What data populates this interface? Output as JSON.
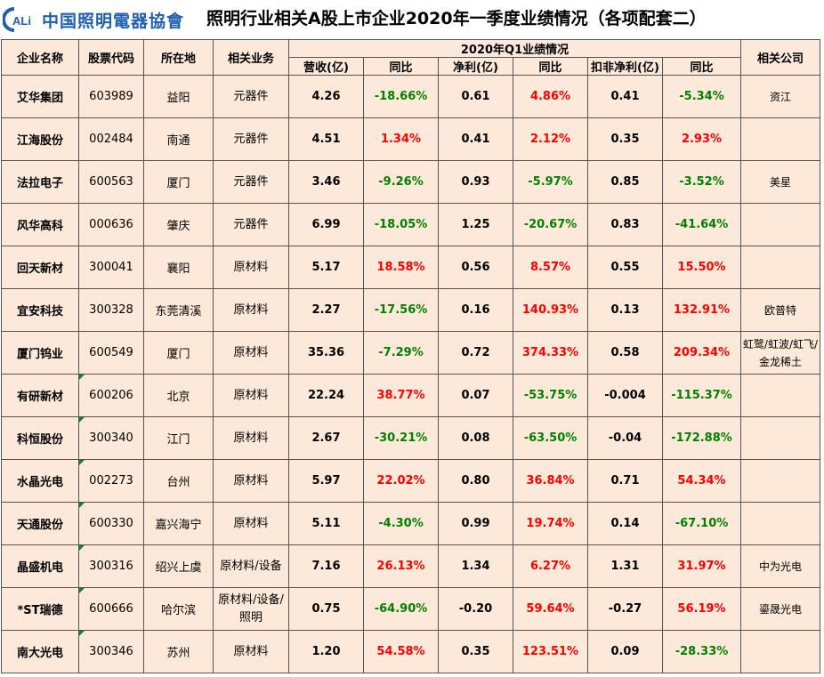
{
  "header": {
    "logo_text": "中国照明電器協會",
    "title": "照明行业相关A股上市企业2020年一季度业绩情况（各项配套二）"
  },
  "colors": {
    "positive": "#ff0000",
    "negative": "#008000",
    "cell_bg": "#fde9d9",
    "logo": "#1f5fb0"
  },
  "table": {
    "headers": {
      "company": "企业名称",
      "code": "股票代码",
      "location": "所在地",
      "business": "相关业务",
      "group": "2020年Q1业绩情况",
      "revenue": "营收(亿)",
      "rev_yoy": "同比",
      "net": "净利(亿)",
      "net_yoy": "同比",
      "deducted": "扣非净利(亿)",
      "ded_yoy": "同比",
      "related": "相关公司"
    },
    "rows": [
      {
        "name": "艾华集团",
        "code": "603989",
        "city": "益阳",
        "business": "元器件",
        "revenue": "4.26",
        "rev_yoy": "-18.66%",
        "net": "0.61",
        "net_yoy": "4.86%",
        "deducted": "0.41",
        "ded_yoy": "-5.34%",
        "related": "资江"
      },
      {
        "name": "江海股份",
        "code": "002484",
        "city": "南通",
        "business": "元器件",
        "revenue": "4.51",
        "rev_yoy": "1.34%",
        "net": "0.41",
        "net_yoy": "2.12%",
        "deducted": "0.35",
        "ded_yoy": "2.93%",
        "related": ""
      },
      {
        "name": "法拉电子",
        "code": "600563",
        "city": "厦门",
        "business": "元器件",
        "revenue": "3.46",
        "rev_yoy": "-9.26%",
        "net": "0.93",
        "net_yoy": "-5.97%",
        "deducted": "0.85",
        "ded_yoy": "-3.52%",
        "related": "美星"
      },
      {
        "name": "风华高科",
        "code": "000636",
        "city": "肇庆",
        "business": "元器件",
        "revenue": "6.99",
        "rev_yoy": "-18.05%",
        "net": "1.25",
        "net_yoy": "-20.67%",
        "deducted": "0.83",
        "ded_yoy": "-41.64%",
        "related": ""
      },
      {
        "name": "回天新材",
        "code": "300041",
        "city": "襄阳",
        "business": "原材料",
        "revenue": "5.17",
        "rev_yoy": "18.58%",
        "net": "0.56",
        "net_yoy": "8.57%",
        "deducted": "0.55",
        "ded_yoy": "15.50%",
        "related": ""
      },
      {
        "name": "宜安科技",
        "code": "300328",
        "city": "东莞清溪",
        "business": "原材料",
        "revenue": "2.27",
        "rev_yoy": "-17.56%",
        "net": "0.16",
        "net_yoy": "140.93%",
        "deducted": "0.13",
        "ded_yoy": "132.91%",
        "related": "欧普特"
      },
      {
        "name": "厦门钨业",
        "code": "600549",
        "city": "厦门",
        "business": "原材料",
        "revenue": "35.36",
        "rev_yoy": "-7.29%",
        "net": "0.72",
        "net_yoy": "374.33%",
        "deducted": "0.58",
        "ded_yoy": "209.34%",
        "related": "虹鹭/虹波/虹飞/金龙稀土"
      },
      {
        "name": "有研新材",
        "code": "600206",
        "city": "北京",
        "business": "原材料",
        "revenue": "22.24",
        "rev_yoy": "38.77%",
        "net": "0.07",
        "net_yoy": "-53.75%",
        "deducted": "-0.004",
        "ded_yoy": "-115.37%",
        "related": ""
      },
      {
        "name": "科恒股份",
        "code": "300340",
        "city": "江门",
        "business": "原材料",
        "revenue": "2.67",
        "rev_yoy": "-30.21%",
        "net": "0.08",
        "net_yoy": "-63.50%",
        "deducted": "-0.04",
        "ded_yoy": "-172.88%",
        "related": ""
      },
      {
        "name": "水晶光电",
        "code": "002273",
        "city": "台州",
        "business": "原材料",
        "revenue": "5.97",
        "rev_yoy": "22.02%",
        "net": "0.80",
        "net_yoy": "36.84%",
        "deducted": "0.71",
        "ded_yoy": "54.34%",
        "related": ""
      },
      {
        "name": "天通股份",
        "code": "600330",
        "city": "嘉兴海宁",
        "business": "原材料",
        "revenue": "5.11",
        "rev_yoy": "-4.30%",
        "net": "0.99",
        "net_yoy": "19.74%",
        "deducted": "0.14",
        "ded_yoy": "-67.10%",
        "related": ""
      },
      {
        "name": "晶盛机电",
        "code": "300316",
        "city": "绍兴上虞",
        "business": "原材料/设备",
        "revenue": "7.16",
        "rev_yoy": "26.13%",
        "net": "1.34",
        "net_yoy": "6.27%",
        "deducted": "1.31",
        "ded_yoy": "31.97%",
        "related": "中为光电"
      },
      {
        "name": "*ST瑞德",
        "code": "600666",
        "city": "哈尔滨",
        "business": "原材料/设备/照明",
        "revenue": "0.75",
        "rev_yoy": "-64.90%",
        "net": "-0.20",
        "net_yoy": "59.64%",
        "deducted": "-0.27",
        "ded_yoy": "56.19%",
        "related": "鎏晟光电"
      },
      {
        "name": "南大光电",
        "code": "300346",
        "city": "苏州",
        "business": "原材料",
        "revenue": "1.20",
        "rev_yoy": "54.58%",
        "net": "0.35",
        "net_yoy": "123.51%",
        "deducted": "0.09",
        "ded_yoy": "-28.33%",
        "related": ""
      }
    ]
  }
}
